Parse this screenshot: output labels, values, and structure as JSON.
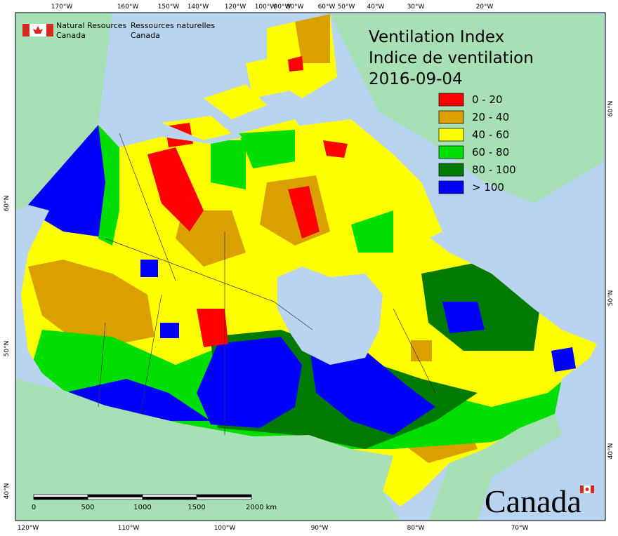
{
  "agency": {
    "en": [
      "Natural Resources",
      "Canada"
    ],
    "fr": [
      "Ressources naturelles",
      "Canada"
    ]
  },
  "title": [
    "Ventilation Index",
    "Indice de ventilation",
    "2016-09-04"
  ],
  "legend": [
    {
      "label": "0 - 20",
      "color": "#ff0000"
    },
    {
      "label": "20 - 40",
      "color": "#daa000"
    },
    {
      "label": "40 - 60",
      "color": "#ffff00"
    },
    {
      "label": "60 - 80",
      "color": "#00dd00"
    },
    {
      "label": "80 - 100",
      "color": "#007a00"
    },
    {
      "label": "> 100",
      "color": "#0000ff"
    }
  ],
  "longitude_labels_top": [
    "170°W",
    "160°W",
    "150°W",
    "140°W",
    "120°W",
    "100°W",
    "90°W",
    "80°W",
    "60°W",
    "50°W",
    "40°W",
    "30°W",
    "20°W"
  ],
  "longitude_labels_bottom": [
    "120°W",
    "110°W",
    "100°W",
    "90°W",
    "80°W",
    "70°W"
  ],
  "latitude_labels_left": [
    "60°N",
    "50°N",
    "40°N"
  ],
  "latitude_labels_right": [
    "60°N",
    "50°N",
    "40°N"
  ],
  "scale_bar": {
    "labels": [
      "0",
      "500",
      "1000",
      "1500",
      "2000 km"
    ]
  },
  "wordmark": "Canada"
}
